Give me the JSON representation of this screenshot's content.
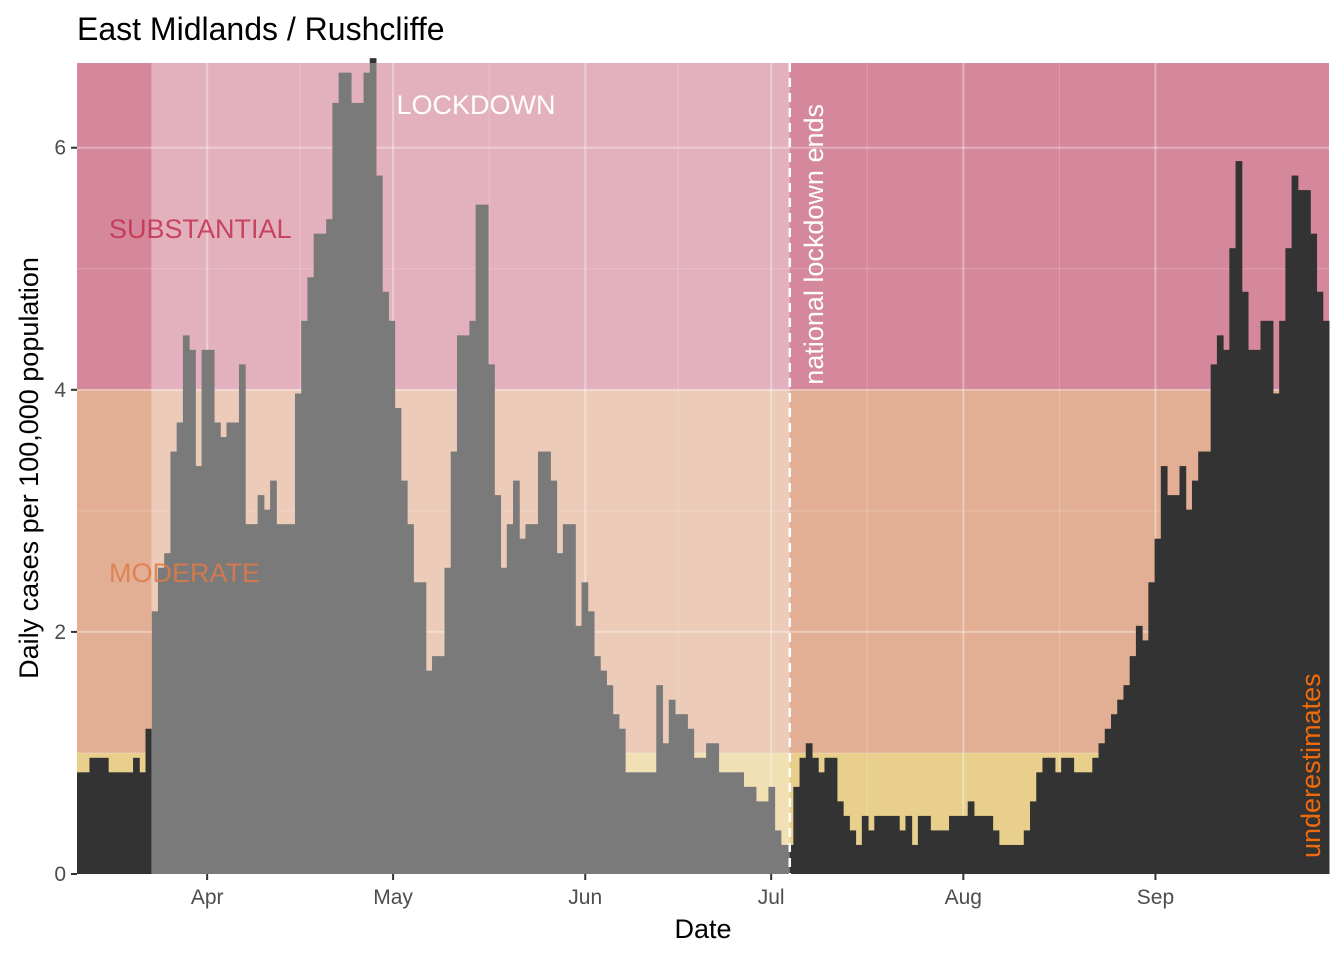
{
  "chart_data": {
    "type": "bar",
    "title": "East Midlands / Rushcliffe",
    "xlabel": "Date",
    "ylabel": "Daily cases per 100,000 population",
    "x_start": "2020-03-11",
    "x_end": "2020-09-29",
    "ylim": [
      0,
      6.7
    ],
    "y_ticks": [
      0,
      2,
      4,
      6
    ],
    "y_tick_labels": [
      "0",
      "2",
      "4",
      "6"
    ],
    "x_ticks": [
      "2020-04-01",
      "2020-05-01",
      "2020-06-01",
      "2020-07-01",
      "2020-08-01",
      "2020-09-01"
    ],
    "x_tick_labels": [
      "Apr",
      "May",
      "Jun",
      "Jul",
      "Aug",
      "Sep"
    ],
    "grid": true,
    "bar_color": "#333333",
    "values": [
      0.84,
      0.84,
      0.96,
      0.96,
      0.96,
      0.84,
      0.84,
      0.84,
      0.84,
      0.96,
      0.84,
      1.2,
      2.17,
      2.53,
      2.65,
      3.49,
      3.73,
      4.45,
      4.33,
      3.37,
      4.33,
      4.33,
      3.73,
      3.61,
      3.73,
      3.73,
      4.21,
      2.89,
      2.89,
      3.13,
      3.01,
      3.25,
      2.89,
      2.89,
      2.89,
      3.97,
      4.57,
      4.93,
      5.29,
      5.29,
      5.41,
      6.37,
      6.62,
      6.62,
      6.37,
      6.37,
      6.62,
      6.74,
      5.77,
      4.81,
      4.57,
      3.85,
      3.25,
      2.89,
      2.41,
      2.41,
      1.68,
      1.8,
      1.8,
      2.53,
      3.49,
      4.45,
      4.45,
      4.57,
      5.53,
      5.53,
      4.21,
      3.13,
      2.53,
      2.89,
      3.25,
      2.77,
      2.89,
      2.89,
      3.49,
      3.49,
      3.25,
      2.65,
      2.89,
      2.89,
      2.05,
      2.41,
      2.17,
      1.8,
      1.68,
      1.56,
      1.32,
      1.2,
      0.84,
      0.84,
      0.84,
      0.84,
      0.84,
      1.56,
      1.08,
      1.44,
      1.32,
      1.32,
      1.2,
      0.96,
      0.96,
      1.08,
      1.08,
      0.84,
      0.84,
      0.84,
      0.84,
      0.72,
      0.72,
      0.6,
      0.6,
      0.72,
      0.36,
      0.24,
      0.24,
      0.72,
      0.96,
      1.08,
      0.96,
      0.84,
      0.96,
      0.96,
      0.6,
      0.48,
      0.36,
      0.24,
      0.48,
      0.36,
      0.48,
      0.48,
      0.48,
      0.48,
      0.36,
      0.48,
      0.24,
      0.48,
      0.48,
      0.36,
      0.36,
      0.36,
      0.48,
      0.48,
      0.48,
      0.6,
      0.48,
      0.48,
      0.48,
      0.36,
      0.24,
      0.24,
      0.24,
      0.24,
      0.36,
      0.6,
      0.84,
      0.96,
      0.96,
      0.84,
      0.96,
      0.96,
      0.84,
      0.84,
      0.84,
      0.96,
      1.08,
      1.2,
      1.32,
      1.44,
      1.56,
      1.8,
      2.05,
      1.93,
      2.41,
      2.77,
      3.37,
      3.13,
      3.13,
      3.37,
      3.01,
      3.25,
      3.49,
      3.49,
      4.21,
      4.45,
      4.33,
      5.17,
      5.89,
      4.81,
      4.33,
      4.33,
      4.57,
      4.57,
      3.97,
      4.57,
      5.17,
      5.77,
      5.65,
      5.65,
      5.29,
      4.81,
      4.57
    ],
    "bands": [
      {
        "label": "SUBSTANTIAL",
        "y0": 4,
        "y1": 6.7,
        "color": "#d5889b",
        "text_color": "#c2304f"
      },
      {
        "label": "MODERATE",
        "y0": 1,
        "y1": 4,
        "color": "#e2af94",
        "text_color": "#df7a45"
      },
      {
        "label": "",
        "y0": 0,
        "y1": 1,
        "color": "#e8d08c"
      }
    ],
    "lockdown": {
      "label": "LOCKDOWN",
      "x0": "2020-03-23",
      "x1": "2020-07-04",
      "color": "#ffffff"
    },
    "vline": {
      "x": "2020-07-04",
      "label": "national lockdown ends",
      "color": "#ffffff"
    },
    "annotation": {
      "text": "underestimates",
      "color": "#f06a0a"
    }
  }
}
